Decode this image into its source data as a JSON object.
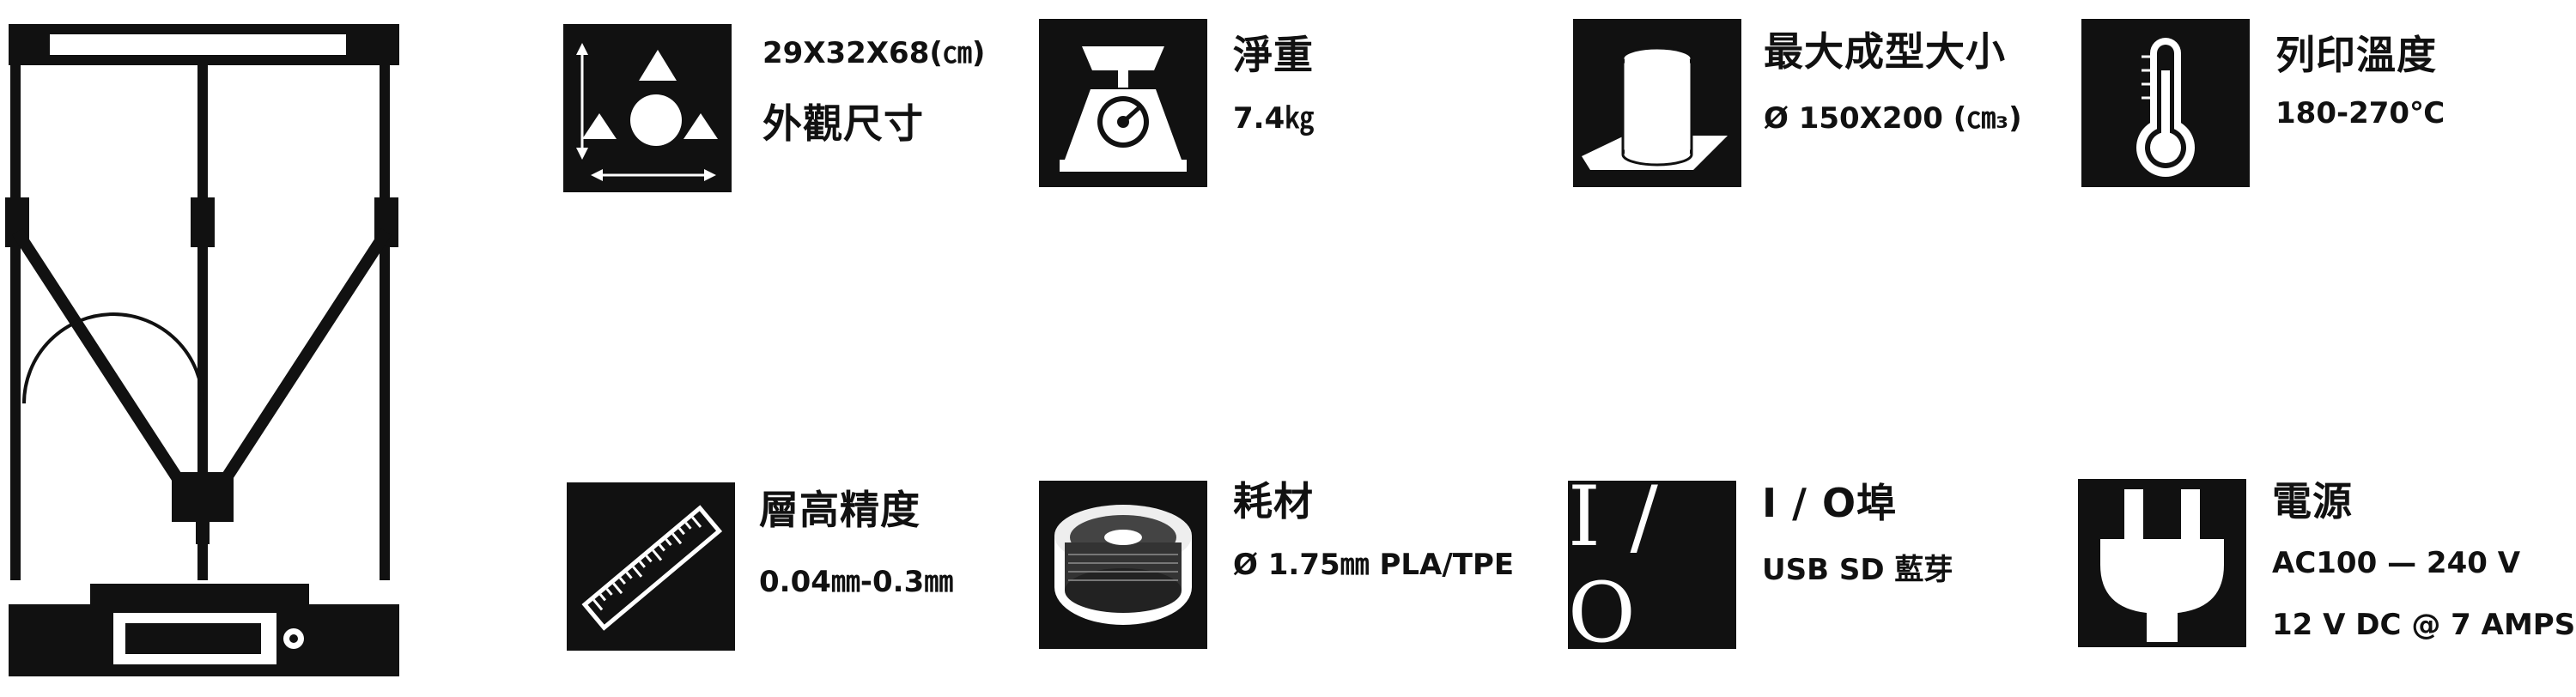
{
  "colors": {
    "ink": "#111111",
    "paper": "#ffffff"
  },
  "product_image": {
    "icon": "delta-3d-printer-illustration"
  },
  "specs": [
    {
      "icon": "dimensions-icon",
      "lines": [
        "29X32X68(㎝)",
        "外觀尺寸"
      ]
    },
    {
      "icon": "weighing-scale-icon",
      "lines": [
        "淨重",
        "7.4㎏"
      ]
    },
    {
      "icon": "cylinder-build-volume-icon",
      "lines": [
        "最大成型大小",
        "Ø 150X200 (㎝₃)"
      ]
    },
    {
      "icon": "thermometer-icon",
      "lines": [
        "列印溫度",
        "180-270℃"
      ]
    },
    {
      "icon": "ruler-icon",
      "lines": [
        "層高精度",
        "0.04㎜-0.3㎜"
      ]
    },
    {
      "icon": "filament-spool-icon",
      "lines": [
        "耗材",
        "Ø 1.75㎜ PLA/TPE"
      ]
    },
    {
      "icon": "io-icon",
      "icon_text": "I / O",
      "lines": [
        "I / O埠",
        "USB  SD 藍芽"
      ]
    },
    {
      "icon": "power-plug-icon",
      "lines": [
        "電源",
        "AC100 — 240 V",
        "12 V DC @ 7 AMPS"
      ]
    }
  ]
}
